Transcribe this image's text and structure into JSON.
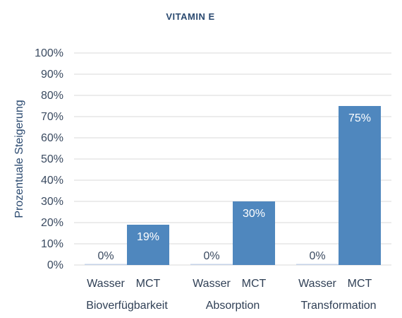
{
  "chart_data": {
    "type": "bar",
    "title": "VITAMIN E",
    "ylabel": "Prozentuale Steigerung",
    "ylim": [
      0,
      100
    ],
    "yticks": [
      "0%",
      "10%",
      "20%",
      "30%",
      "40%",
      "50%",
      "60%",
      "70%",
      "80%",
      "90%",
      "100%"
    ],
    "groups": [
      {
        "name": "Bioverfügbarkeit",
        "bars": [
          {
            "label": "Wasser",
            "value": 0,
            "display": "0%"
          },
          {
            "label": "MCT",
            "value": 19,
            "display": "19%"
          }
        ]
      },
      {
        "name": "Absorption",
        "bars": [
          {
            "label": "Wasser",
            "value": 0,
            "display": "0%"
          },
          {
            "label": "MCT",
            "value": 30,
            "display": "30%"
          }
        ]
      },
      {
        "name": "Transformation",
        "bars": [
          {
            "label": "Wasser",
            "value": 0,
            "display": "0%"
          },
          {
            "label": "MCT",
            "value": 75,
            "display": "75%"
          }
        ]
      }
    ],
    "grid": true,
    "colors": {
      "bar": "#4f87be",
      "zero_bar": "#c5d3e8",
      "title": "#2b4a70",
      "text": "#3a4a60"
    }
  }
}
